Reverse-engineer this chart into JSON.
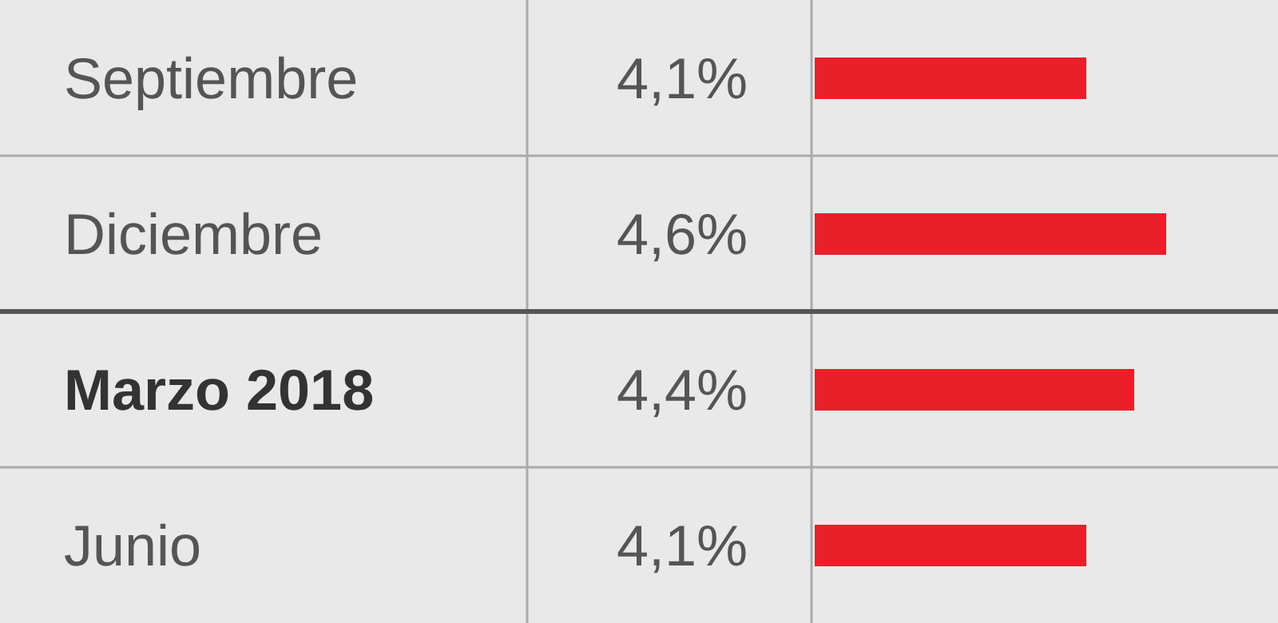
{
  "chart_data": {
    "type": "bar",
    "orientation": "horizontal",
    "categories": [
      "Septiembre",
      "Diciembre",
      "Marzo 2018",
      "Junio"
    ],
    "values": [
      4.1,
      4.6,
      4.4,
      4.1
    ],
    "value_labels": [
      "4,1%",
      "4,6%",
      "4,4%",
      "4,1%"
    ],
    "color": "#e8202a",
    "xlim": [
      2.4,
      5.3
    ],
    "tick_labels": false
  }
}
